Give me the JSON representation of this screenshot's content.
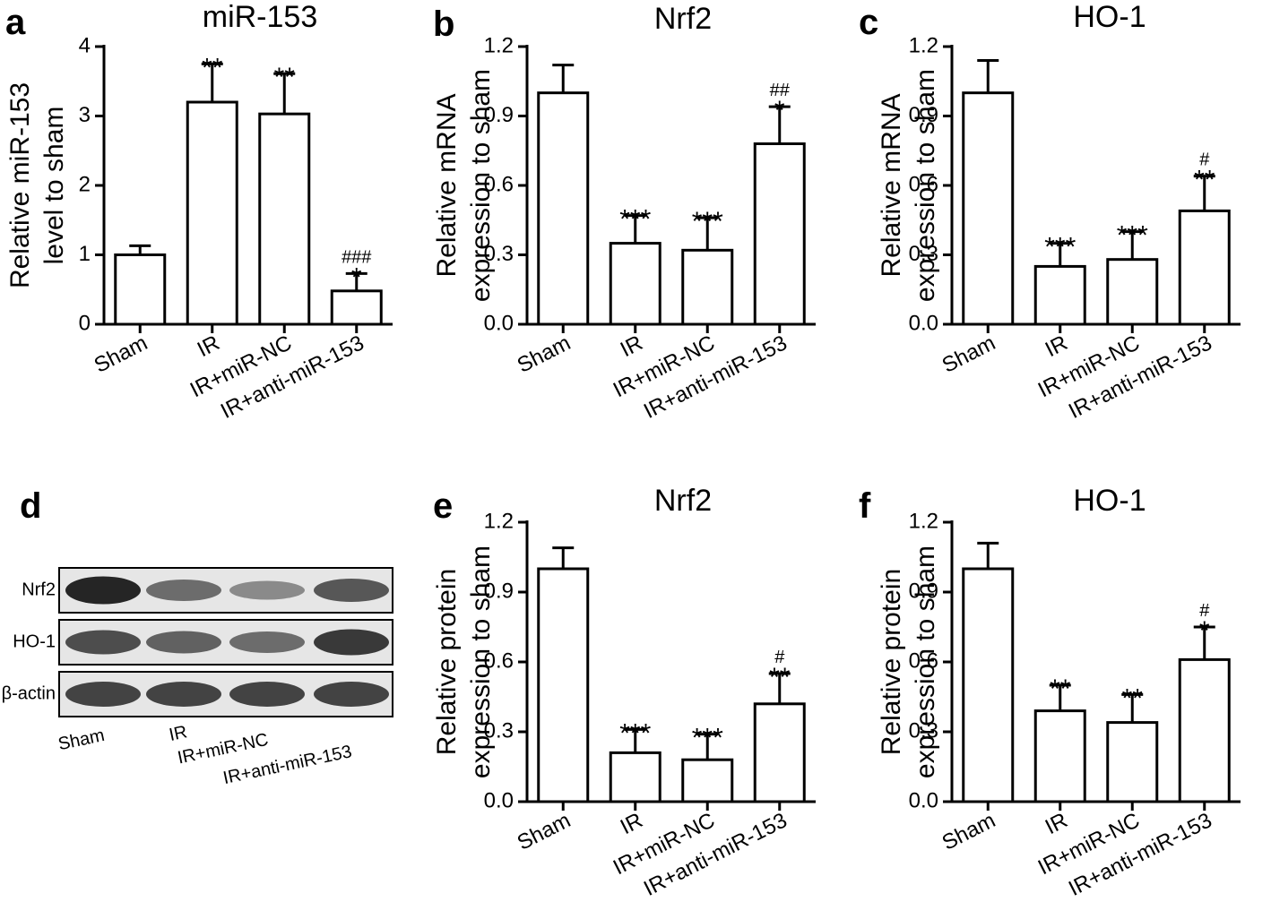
{
  "colors": {
    "bar_fill": "#ffffff",
    "ink": "#000000",
    "blot_bg": "#e6e6e6",
    "band": "#1a1a1a"
  },
  "chart_data": [
    {
      "panel": "a",
      "type": "bar",
      "title": "miR-153",
      "ylabel": [
        "Relative miR-153",
        "level to sham"
      ],
      "categories": [
        "Sham",
        "IR",
        "IR+miR-NC",
        "IR+anti-miR-153"
      ],
      "values": [
        1.0,
        3.2,
        3.03,
        0.48
      ],
      "errors": [
        0.13,
        0.55,
        0.58,
        0.25
      ],
      "star_labels": [
        "",
        "**",
        "**",
        "*"
      ],
      "hash_labels": [
        "",
        "",
        "",
        "###"
      ],
      "ylim": [
        0,
        4
      ],
      "yticks": [
        "0",
        "1",
        "2",
        "3",
        "4"
      ]
    },
    {
      "panel": "b",
      "type": "bar",
      "title": "Nrf2",
      "ylabel": [
        "Relative mRNA",
        "expression to sham"
      ],
      "categories": [
        "Sham",
        "IR",
        "IR+miR-NC",
        "IR+anti-miR-153"
      ],
      "values": [
        1.0,
        0.35,
        0.32,
        0.78
      ],
      "errors": [
        0.12,
        0.12,
        0.14,
        0.16
      ],
      "star_labels": [
        "",
        "***",
        "***",
        "*"
      ],
      "hash_labels": [
        "",
        "",
        "",
        "##"
      ],
      "ylim": [
        0,
        1.2
      ],
      "yticks": [
        "0.0",
        "0.3",
        "0.6",
        "0.9",
        "1.2"
      ]
    },
    {
      "panel": "c",
      "type": "bar",
      "title": "HO-1",
      "ylabel": [
        "Relative mRNA",
        "expression to sham"
      ],
      "categories": [
        "Sham",
        "IR",
        "IR+miR-NC",
        "IR+anti-miR-153"
      ],
      "values": [
        1.0,
        0.25,
        0.28,
        0.49
      ],
      "errors": [
        0.14,
        0.1,
        0.12,
        0.15
      ],
      "star_labels": [
        "",
        "***",
        "***",
        "**"
      ],
      "hash_labels": [
        "",
        "",
        "",
        "#"
      ],
      "ylim": [
        0,
        1.2
      ],
      "yticks": [
        "0.0",
        "0.3",
        "0.6",
        "0.9",
        "1.2"
      ]
    },
    {
      "panel": "e",
      "type": "bar",
      "title": "Nrf2",
      "ylabel": [
        "Relative protein",
        "expression to sham"
      ],
      "categories": [
        "Sham",
        "IR",
        "IR+miR-NC",
        "IR+anti-miR-153"
      ],
      "values": [
        1.0,
        0.21,
        0.18,
        0.42
      ],
      "errors": [
        0.09,
        0.1,
        0.11,
        0.13
      ],
      "star_labels": [
        "",
        "***",
        "***",
        "**"
      ],
      "hash_labels": [
        "",
        "",
        "",
        "#"
      ],
      "ylim": [
        0,
        1.2
      ],
      "yticks": [
        "0.0",
        "0.3",
        "0.6",
        "0.9",
        "1.2"
      ]
    },
    {
      "panel": "f",
      "type": "bar",
      "title": "HO-1",
      "ylabel": [
        "Relative protein",
        "expression to sham"
      ],
      "categories": [
        "Sham",
        "IR",
        "IR+miR-NC",
        "IR+anti-miR-153"
      ],
      "values": [
        1.0,
        0.39,
        0.34,
        0.61
      ],
      "errors": [
        0.11,
        0.11,
        0.12,
        0.14
      ],
      "star_labels": [
        "",
        "**",
        "**",
        "*"
      ],
      "hash_labels": [
        "",
        "",
        "",
        "#"
      ],
      "ylim": [
        0,
        1.2
      ],
      "yticks": [
        "0.0",
        "0.3",
        "0.6",
        "0.9",
        "1.2"
      ]
    }
  ],
  "blot": {
    "panel": "d",
    "rows": [
      {
        "label": "Nrf2",
        "band_intensity": [
          0.95,
          0.6,
          0.45,
          0.7
        ]
      },
      {
        "label": "HO-1",
        "band_intensity": [
          0.75,
          0.65,
          0.6,
          0.85
        ]
      },
      {
        "label": "β-actin",
        "band_intensity": [
          0.8,
          0.8,
          0.8,
          0.8
        ]
      }
    ],
    "lanes": [
      "Sham",
      "IR",
      "IR+miR-NC",
      "IR+anti-miR-153"
    ]
  }
}
